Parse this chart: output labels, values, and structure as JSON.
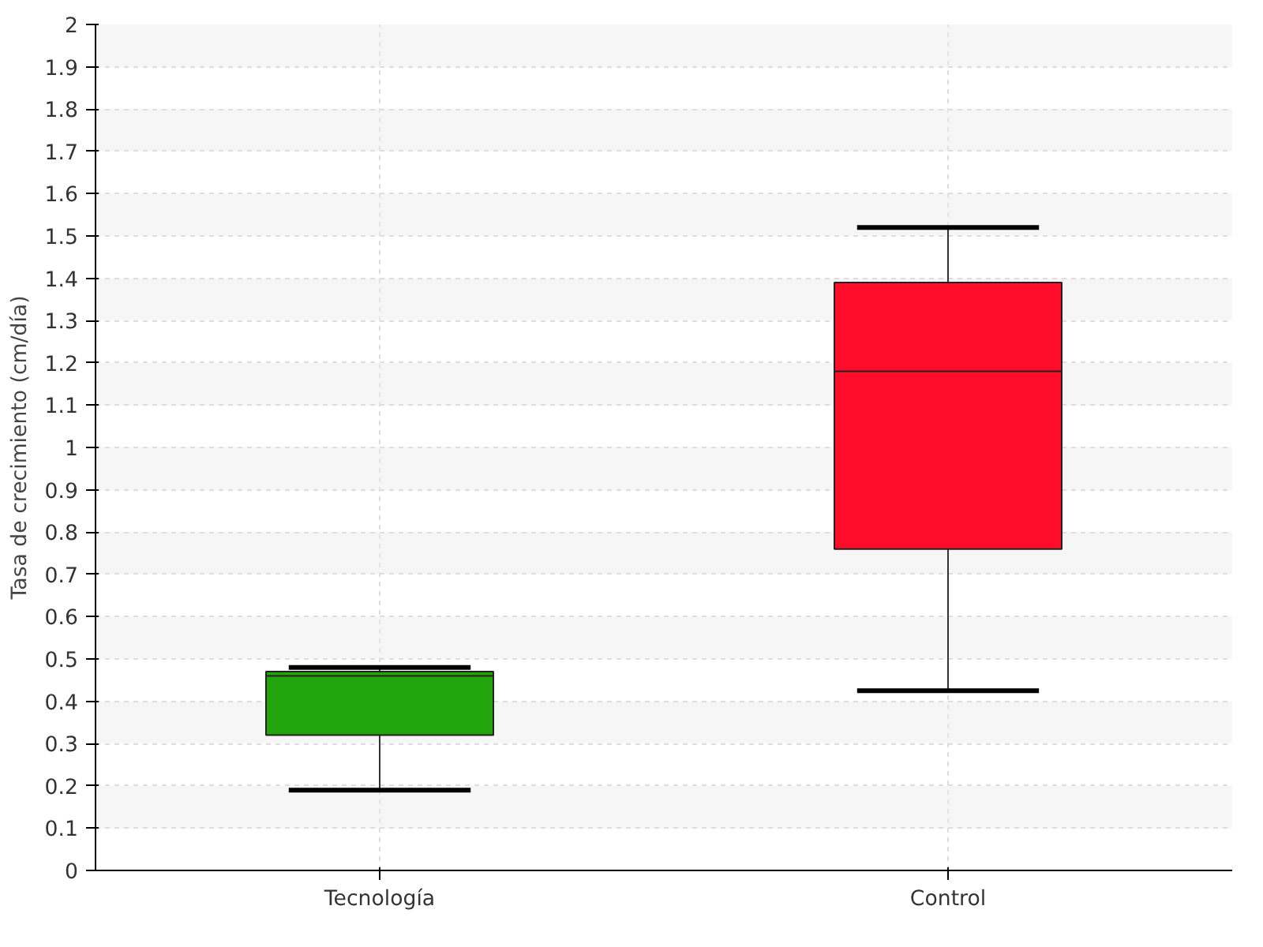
{
  "chart_data": {
    "type": "box",
    "ylabel": "Tasa de crecimiento (cm/día)",
    "categories": [
      "Tecnología",
      "Control"
    ],
    "series": [
      {
        "colors": [
          "#22a50c",
          "#ff0d2b"
        ],
        "boxes": [
          {
            "low": 0.19,
            "q1": 0.32,
            "median": 0.46,
            "q3": 0.47,
            "high": 0.48
          },
          {
            "low": 0.425,
            "q1": 0.76,
            "median": 1.18,
            "q3": 1.39,
            "high": 1.52
          }
        ]
      }
    ],
    "ylim": [
      0,
      2
    ],
    "yticks": [
      0,
      0.1,
      0.2,
      0.3,
      0.4,
      0.5,
      0.6,
      0.7,
      0.8,
      0.9,
      1,
      1.1,
      1.2,
      1.3,
      1.4,
      1.5,
      1.6,
      1.7,
      1.8,
      1.9,
      2
    ],
    "grid": true
  }
}
